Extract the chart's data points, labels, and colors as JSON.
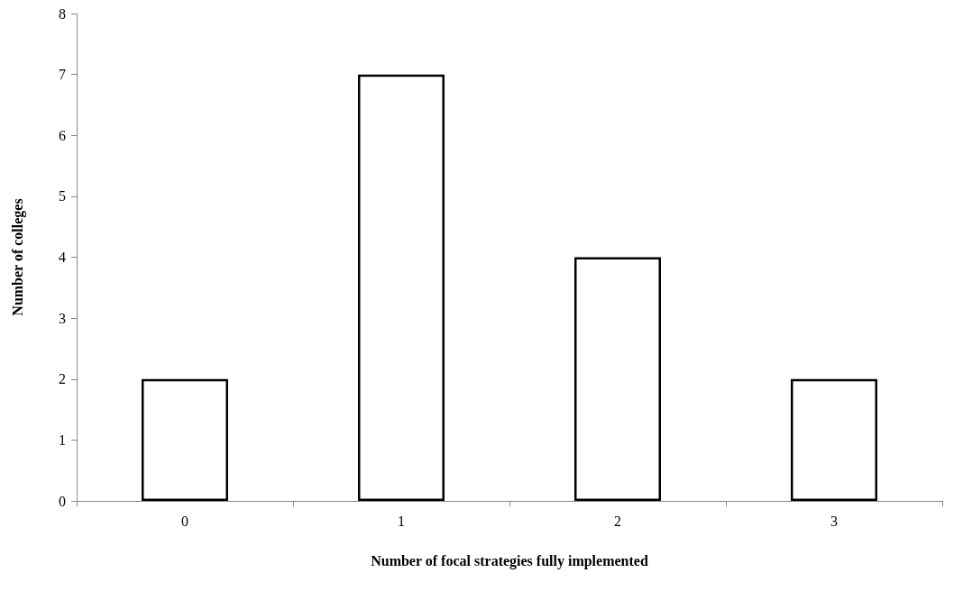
{
  "chart_data": {
    "type": "bar",
    "xlabel": "Number of focal strategies fully implemented",
    "ylabel": "Number of colleges",
    "categories": [
      "0",
      "1",
      "2",
      "3"
    ],
    "values": [
      2,
      7,
      4,
      2
    ],
    "color": "#ffffff",
    "ylim": [
      0,
      8
    ],
    "yticks": [
      0,
      1,
      2,
      3,
      4,
      5,
      6,
      7,
      8
    ],
    "grid": false
  }
}
